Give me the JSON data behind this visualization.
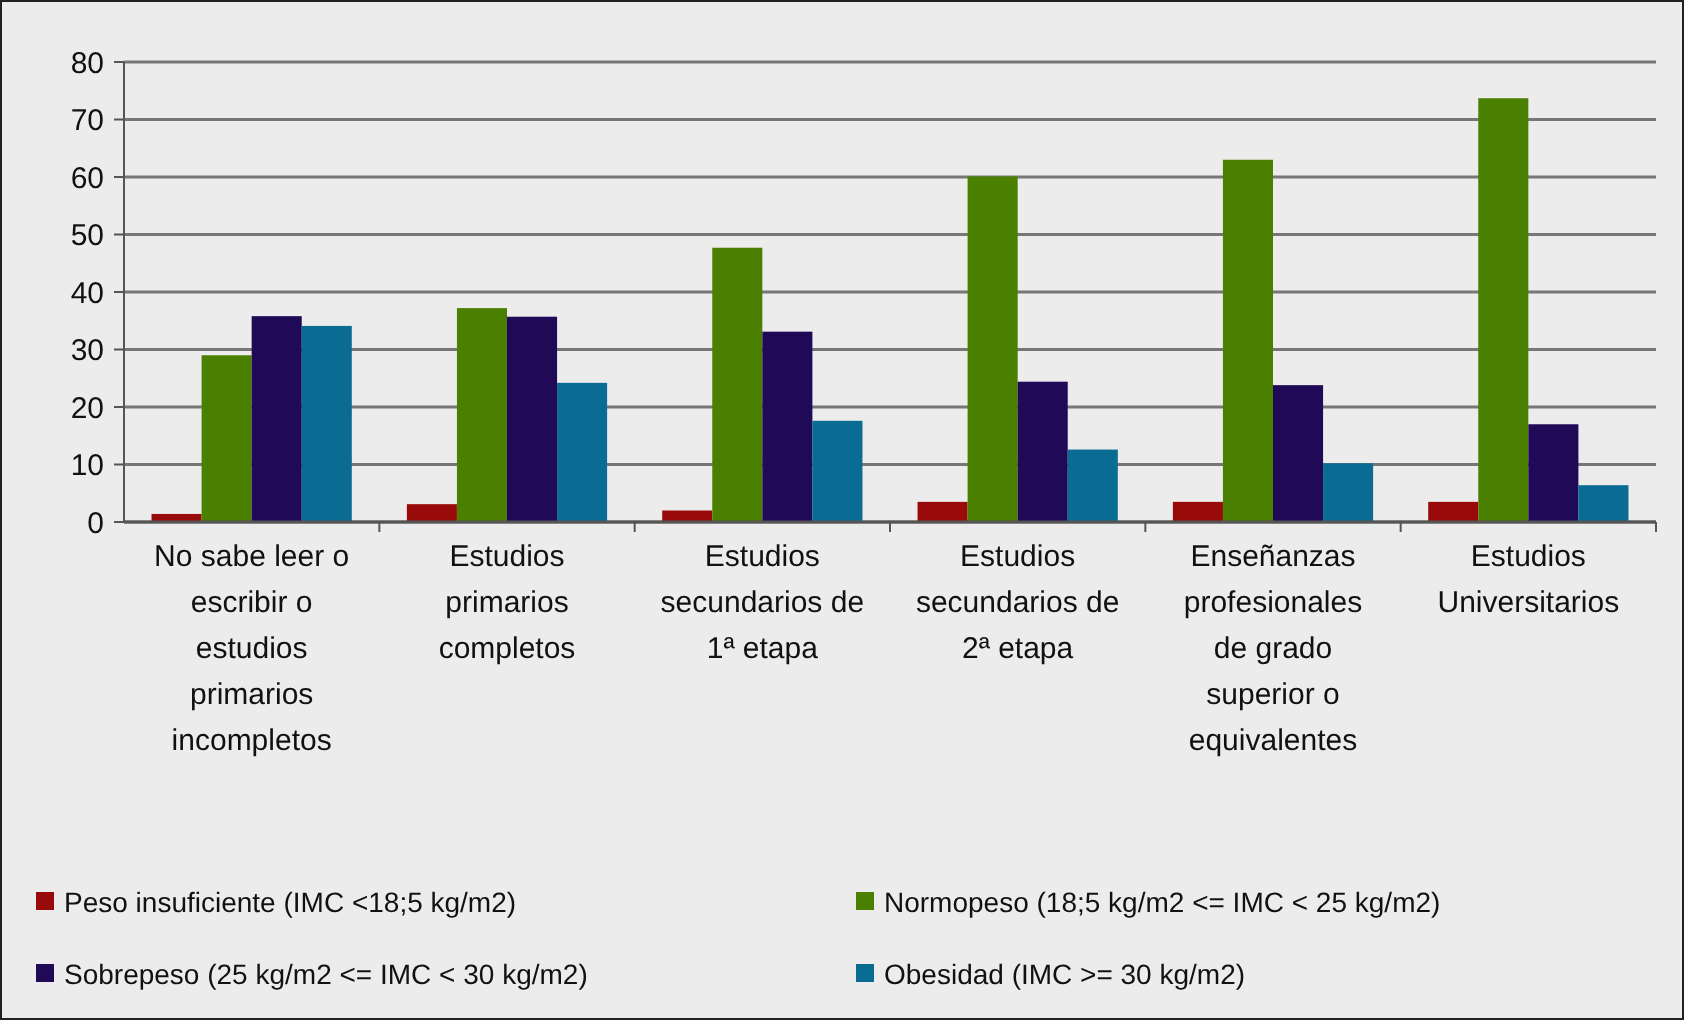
{
  "chart_data": {
    "type": "bar",
    "categories": [
      "No sabe leer o escribir o estudios primarios incompletos",
      "Estudios primarios completos",
      "Estudios secundarios de 1ª etapa",
      "Estudios secundarios de 2ª etapa",
      "Enseñanzas profesionales de grado superior o equivalentes",
      "Estudios Universitarios"
    ],
    "series": [
      {
        "name": "Peso insuficiente (IMC <18;5 kg/m2)",
        "color": "#990a0a",
        "values": [
          1.4,
          3.1,
          2.0,
          3.5,
          3.5,
          3.5
        ]
      },
      {
        "name": "Normopeso (18;5 kg/m2 <= IMC < 25 kg/m2)",
        "color": "#4b7f00",
        "values": [
          29,
          37.2,
          47.7,
          60.1,
          63,
          73.7
        ]
      },
      {
        "name": "Sobrepeso (25 kg/m2 <= IMC < 30 kg/m2)",
        "color": "#200a58",
        "values": [
          35.8,
          35.7,
          33.1,
          24.4,
          23.8,
          17
        ]
      },
      {
        "name": "Obesidad (IMC >= 30 kg/m2)",
        "color": "#0a6c92",
        "values": [
          34.1,
          24.2,
          17.6,
          12.6,
          10.2,
          6.4
        ]
      }
    ],
    "ylim": [
      0,
      80
    ],
    "yticks": [
      0,
      10,
      20,
      30,
      40,
      50,
      60,
      70,
      80
    ],
    "grid": "y",
    "legend": "bottom"
  }
}
